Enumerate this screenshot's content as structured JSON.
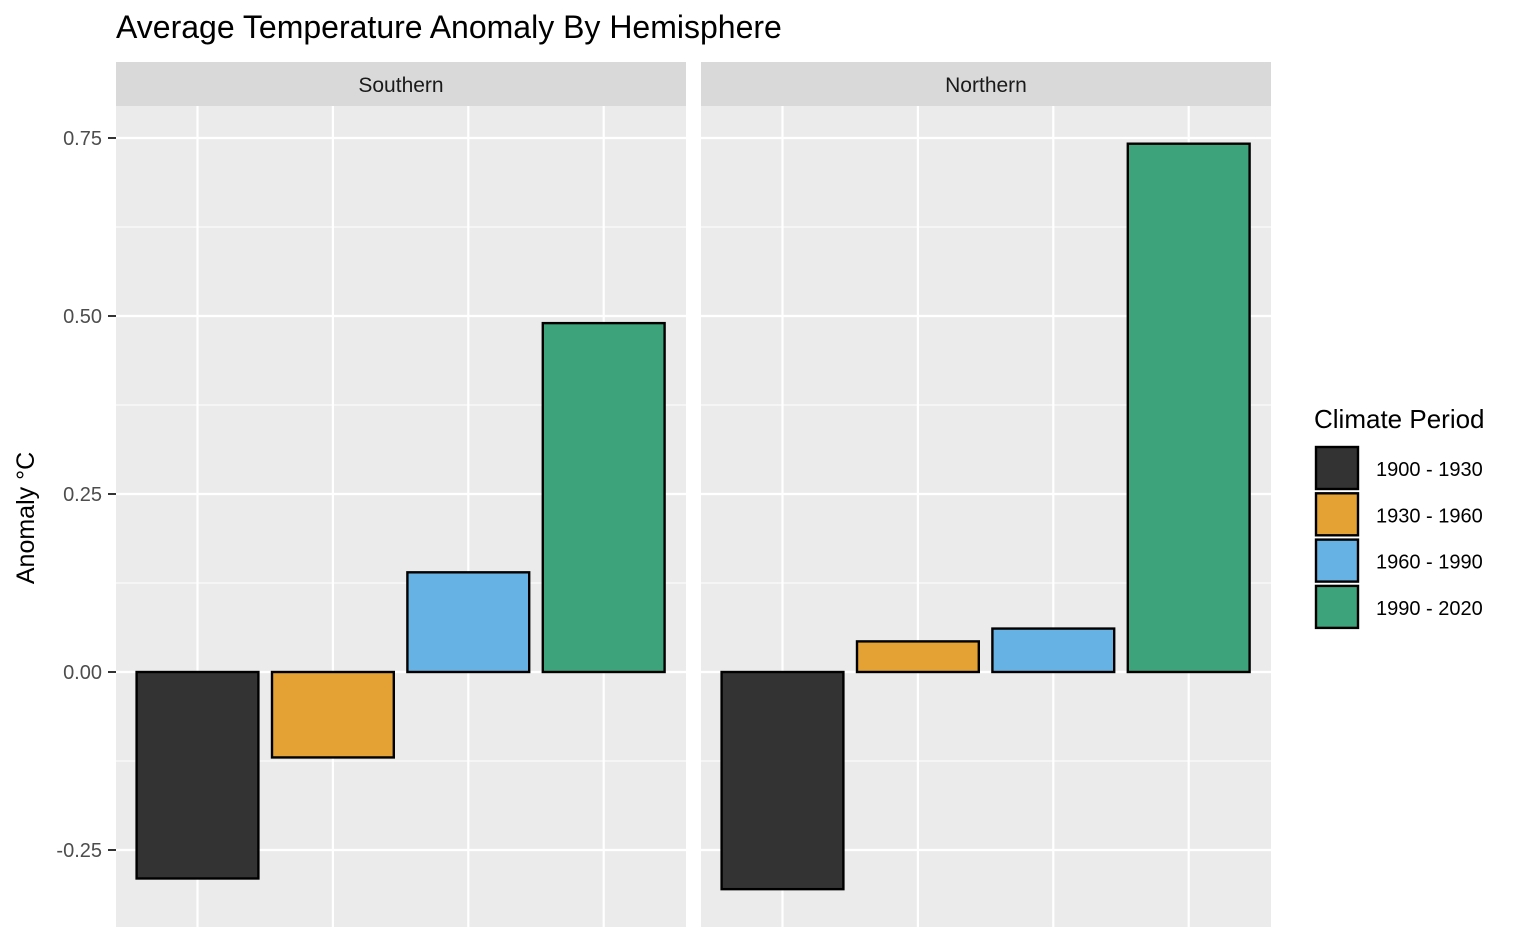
{
  "chart_data": {
    "type": "bar",
    "title": "Average Temperature Anomaly By Hemisphere",
    "xlabel": "",
    "ylabel": "Anomaly °C",
    "ylim": [
      -0.36,
      0.8
    ],
    "yticks": [
      -0.25,
      0.0,
      0.25,
      0.5,
      0.75
    ],
    "ytick_labels": [
      "-0.25",
      "0.00",
      "0.25",
      "0.50",
      "0.75"
    ],
    "grid": true,
    "legend": {
      "title": "Climate Period",
      "placement": "right"
    },
    "categories": [
      "1900 - 1930",
      "1930 - 1960",
      "1960 - 1990",
      "1990 - 2020"
    ],
    "colors": [
      "#333333",
      "#E3A233",
      "#67B2E4",
      "#3DA37A"
    ],
    "facets": [
      {
        "name": "Southern",
        "values": [
          -0.29,
          -0.12,
          0.14,
          0.49
        ]
      },
      {
        "name": "Northern",
        "values": [
          -0.305,
          0.043,
          0.061,
          0.742
        ]
      }
    ]
  }
}
